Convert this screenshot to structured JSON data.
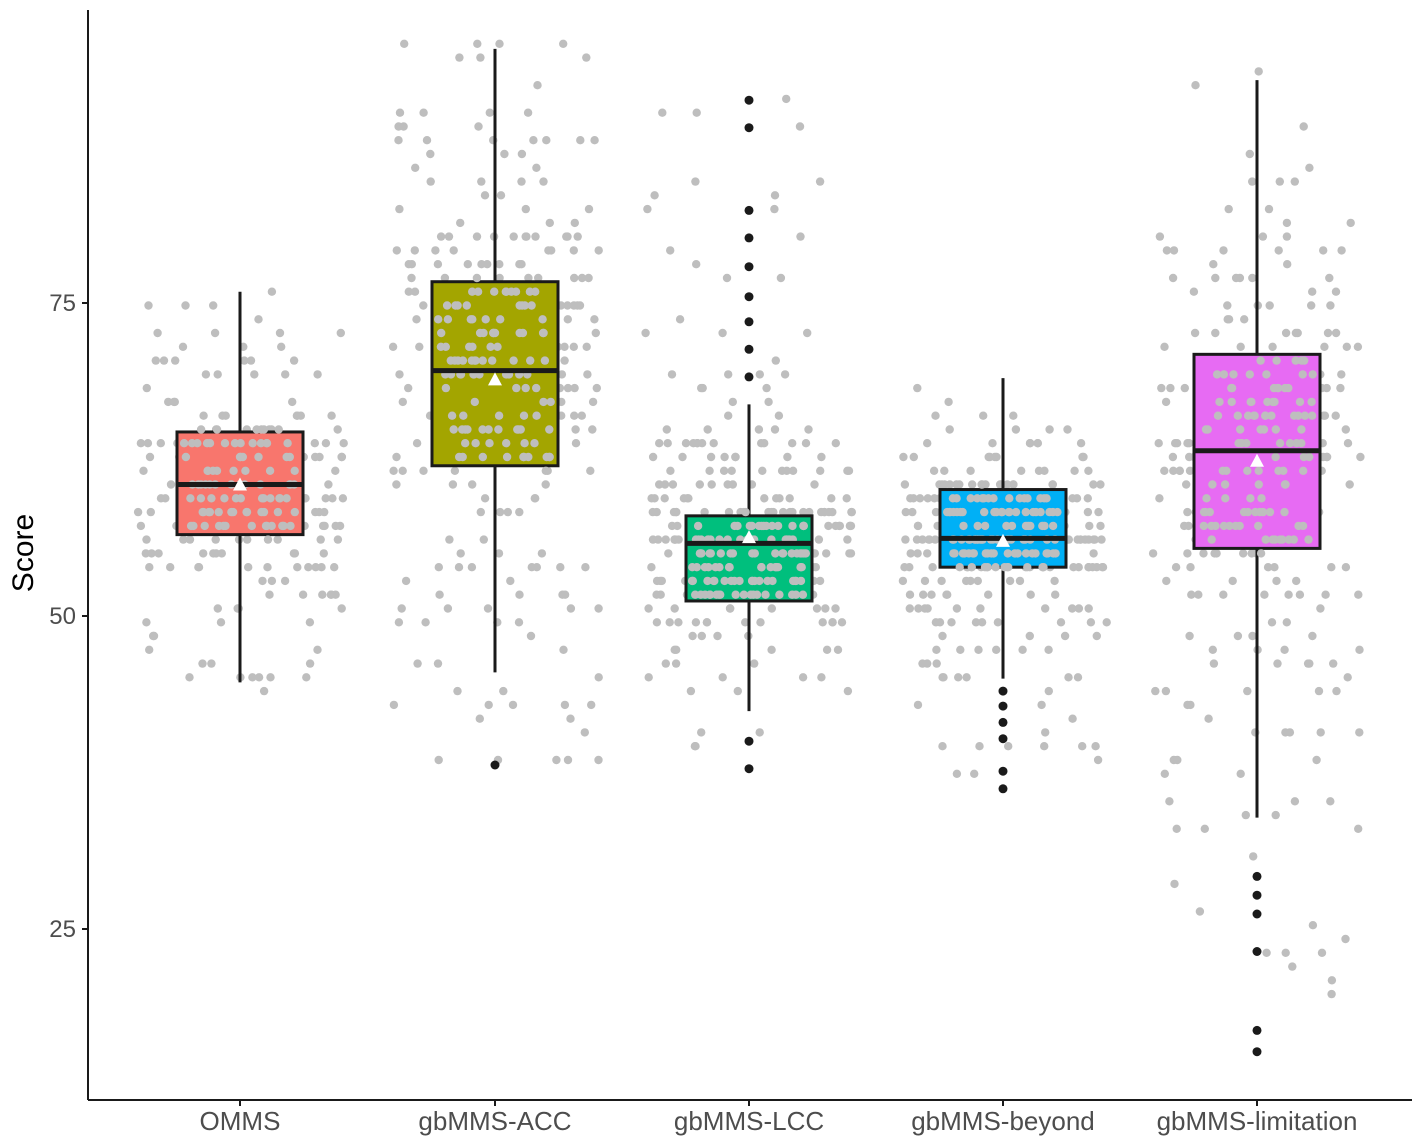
{
  "chart_data": {
    "type": "box",
    "ylabel": "Score",
    "xlabel": "",
    "ylim": [
      11,
      98
    ],
    "yticks": [
      25,
      50,
      75
    ],
    "grid": false,
    "legend": "none",
    "box_edge_color": "#1a1a1a",
    "jitter_color": "#bebebe",
    "outlier_color": "#1a1a1a",
    "mean_marker_color": "#ffffff",
    "groups": [
      {
        "category": "OMMS",
        "color": "#f8766d",
        "q1": 56.5,
        "median": 60.5,
        "q3": 64.7,
        "whisker_low": 44.7,
        "whisker_high": 75.9,
        "mean": 60.5,
        "outliers": [],
        "jitter": {
          "min": 44.5,
          "max": 76.2,
          "seed": 11,
          "count": 190
        }
      },
      {
        "category": "gbMMS-ACC",
        "color": "#a3a500",
        "q1": 62.0,
        "median": 69.6,
        "q3": 76.7,
        "whisker_low": 45.5,
        "whisker_high": 95.3,
        "mean": 68.9,
        "outliers": [
          38.1
        ],
        "jitter": {
          "min": 38.0,
          "max": 95.5,
          "seed": 23,
          "count": 230
        }
      },
      {
        "category": "gbMMS-LCC",
        "color": "#00bf7d",
        "q1": 51.2,
        "median": 55.8,
        "q3": 58.0,
        "whisker_low": 42.4,
        "whisker_high": 66.9,
        "mean": 56.3,
        "outliers": [
          91.2,
          89.0,
          82.4,
          80.2,
          77.9,
          75.5,
          73.5,
          71.3,
          69.1,
          40.0,
          37.8
        ],
        "jitter": {
          "min": 37.8,
          "max": 91.2,
          "seed": 37,
          "count": 240
        }
      },
      {
        "category": "gbMMS-beyond",
        "color": "#00b0f6",
        "q1": 53.9,
        "median": 56.2,
        "q3": 60.1,
        "whisker_low": 45.0,
        "whisker_high": 69.0,
        "mean": 56.0,
        "outliers": [
          44.0,
          42.8,
          41.5,
          40.2,
          37.6,
          36.2
        ],
        "jitter": {
          "min": 36.2,
          "max": 69.0,
          "seed": 53,
          "count": 230
        }
      },
      {
        "category": "gbMMS-limitation",
        "color": "#e76bf3",
        "q1": 55.4,
        "median": 63.2,
        "q3": 70.9,
        "whisker_low": 33.9,
        "whisker_high": 92.8,
        "mean": 62.4,
        "outliers": [
          29.2,
          27.7,
          26.2,
          23.2,
          16.9,
          15.2
        ],
        "jitter": {
          "min": 15.2,
          "max": 93.0,
          "seed": 71,
          "count": 230
        }
      }
    ]
  }
}
